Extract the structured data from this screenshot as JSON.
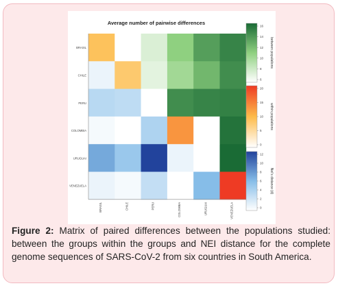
{
  "chart_data": {
    "type": "heatmap",
    "title": "Average number of pairwise differences",
    "rows": [
      "BRASIL",
      "CHILE",
      "PERU",
      "COLOMBIA",
      "URUGUAI",
      "VENEZUELA"
    ],
    "columns": [
      "BRASIL",
      "CHILE",
      "PERU",
      "COLOMBIA",
      "URUGUAI",
      "VENEZUELA"
    ],
    "cells": [
      [
        {
          "scale": "within",
          "value": 9
        },
        {
          "scale": "none",
          "value": null
        },
        {
          "scale": "between",
          "value": 7
        },
        {
          "scale": "between",
          "value": 11
        },
        {
          "scale": "between",
          "value": 14
        },
        {
          "scale": "between",
          "value": 15.5
        }
      ],
      [
        {
          "scale": "nei",
          "value": 1
        },
        {
          "scale": "within",
          "value": 8
        },
        {
          "scale": "between",
          "value": 6.5
        },
        {
          "scale": "between",
          "value": 10
        },
        {
          "scale": "between",
          "value": 12.5
        },
        {
          "scale": "between",
          "value": 15
        }
      ],
      [
        {
          "scale": "nei",
          "value": 3.5
        },
        {
          "scale": "nei",
          "value": 3.2
        },
        {
          "scale": "none",
          "value": null
        },
        {
          "scale": "between",
          "value": 15
        },
        {
          "scale": "between",
          "value": 15.5
        },
        {
          "scale": "between",
          "value": 15.7
        }
      ],
      [
        {
          "scale": "nei",
          "value": 0.5
        },
        {
          "scale": "none",
          "value": null
        },
        {
          "scale": "nei",
          "value": 4
        },
        {
          "scale": "within",
          "value": 13
        },
        {
          "scale": "none",
          "value": null
        },
        {
          "scale": "between",
          "value": 16.5
        }
      ],
      [
        {
          "scale": "nei",
          "value": 7
        },
        {
          "scale": "nei",
          "value": 5
        },
        {
          "scale": "nei",
          "value": 12
        },
        {
          "scale": "nei",
          "value": 1
        },
        {
          "scale": "none",
          "value": null
        },
        {
          "scale": "between",
          "value": 17.5
        }
      ],
      [
        {
          "scale": "nei",
          "value": 1
        },
        {
          "scale": "nei",
          "value": 0.5
        },
        {
          "scale": "nei",
          "value": 3
        },
        {
          "scale": "none",
          "value": null
        },
        {
          "scale": "nei",
          "value": 6
        },
        {
          "scale": "within",
          "value": 20
        }
      ]
    ],
    "colorbars": [
      {
        "key": "between",
        "label": "between populations",
        "ticks": [
          "16",
          "14",
          "12",
          "10",
          "8",
          "6"
        ],
        "range": [
          5,
          17
        ],
        "colors": [
          "#ffffff",
          "#1a8a42"
        ]
      },
      {
        "key": "within",
        "label": "within populations",
        "ticks": [
          "20",
          "15",
          "10",
          "5",
          "0"
        ],
        "range": [
          0,
          20
        ],
        "colors": [
          "#ffffff",
          "#ee3b24"
        ]
      },
      {
        "key": "nei",
        "label": "Nei's distance (d)",
        "ticks": [
          "12",
          "10",
          "8",
          "6",
          "4",
          "2",
          "0"
        ],
        "range": [
          0,
          12
        ],
        "colors": [
          "#ffffff",
          "#22439c"
        ]
      }
    ]
  },
  "caption": {
    "label": "Figure 2:",
    "text": " Matrix of paired differences between the populations studied: between the groups within the groups and NEI distance for the complete genome sequences of SARS-CoV-2 from six countries in South America."
  }
}
